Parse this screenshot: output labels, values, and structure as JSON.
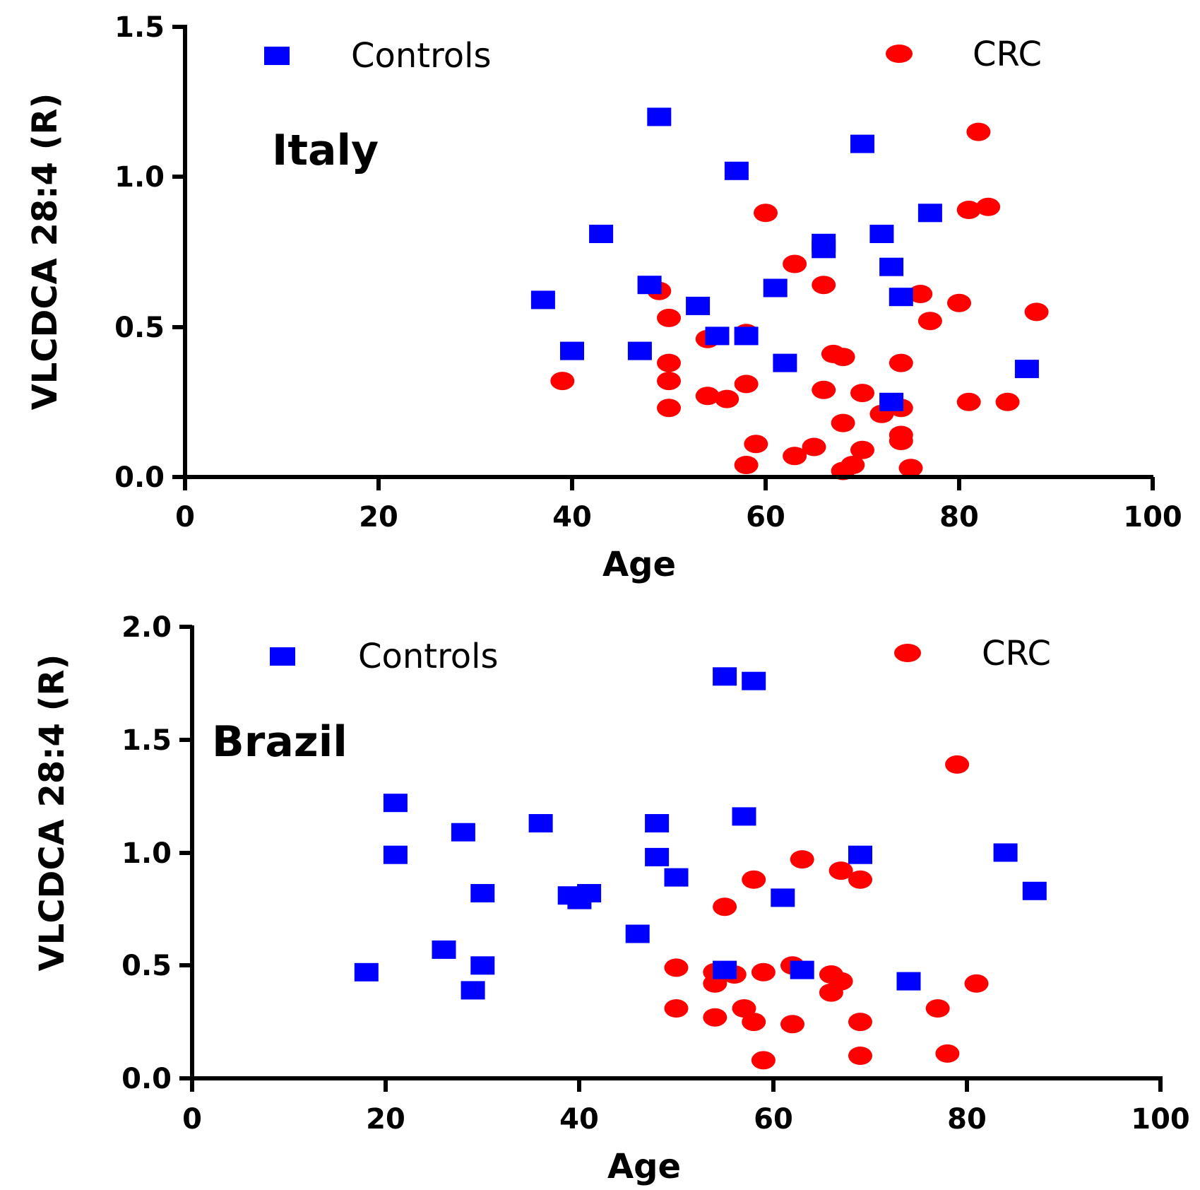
{
  "colors": {
    "controls": "#0000ff",
    "crc": "#ff0000",
    "axis": "#000000"
  },
  "chart_data": [
    {
      "type": "scatter",
      "title": "Italy",
      "xlabel": "Age",
      "ylabel": "VLCDCA 28:4 (R)",
      "xlim": [
        0,
        100
      ],
      "ylim": [
        0,
        1.5
      ],
      "xticks": [
        "0",
        "20",
        "40",
        "60",
        "80",
        "100"
      ],
      "yticks": [
        "0.0",
        "0.5",
        "1.0",
        "1.5"
      ],
      "legend": [
        "Controls",
        "CRC"
      ],
      "series": [
        {
          "name": "Controls",
          "marker": "square",
          "points": [
            [
              37,
              0.59
            ],
            [
              40,
              0.42
            ],
            [
              43,
              0.81
            ],
            [
              47,
              0.42
            ],
            [
              48,
              0.64
            ],
            [
              49,
              1.2
            ],
            [
              53,
              0.57
            ],
            [
              55,
              0.47
            ],
            [
              57,
              1.02
            ],
            [
              58,
              0.47
            ],
            [
              61,
              0.63
            ],
            [
              62,
              0.38
            ],
            [
              66,
              0.78
            ],
            [
              66,
              0.76
            ],
            [
              70,
              1.11
            ],
            [
              72,
              0.81
            ],
            [
              73,
              0.7
            ],
            [
              74,
              0.6
            ],
            [
              73,
              0.25
            ],
            [
              77,
              0.88
            ],
            [
              87,
              0.36
            ]
          ]
        },
        {
          "name": "CRC",
          "marker": "circle",
          "points": [
            [
              39,
              0.32
            ],
            [
              49,
              0.62
            ],
            [
              50,
              0.53
            ],
            [
              50,
              0.38
            ],
            [
              50,
              0.32
            ],
            [
              50,
              0.23
            ],
            [
              54,
              0.46
            ],
            [
              54,
              0.27
            ],
            [
              56,
              0.26
            ],
            [
              58,
              0.48
            ],
            [
              58,
              0.31
            ],
            [
              58,
              0.04
            ],
            [
              59,
              0.11
            ],
            [
              60,
              0.88
            ],
            [
              63,
              0.71
            ],
            [
              63,
              0.07
            ],
            [
              65,
              0.1
            ],
            [
              66,
              0.64
            ],
            [
              66,
              0.29
            ],
            [
              67,
              0.41
            ],
            [
              68,
              0.4
            ],
            [
              68,
              0.18
            ],
            [
              68,
              0.02
            ],
            [
              69,
              0.04
            ],
            [
              70,
              0.28
            ],
            [
              70,
              0.09
            ],
            [
              72,
              0.21
            ],
            [
              74,
              0.23
            ],
            [
              74,
              0.38
            ],
            [
              74,
              0.14
            ],
            [
              74,
              0.12
            ],
            [
              75,
              0.03
            ],
            [
              76,
              0.61
            ],
            [
              77,
              0.52
            ],
            [
              80,
              0.58
            ],
            [
              81,
              0.89
            ],
            [
              81,
              0.25
            ],
            [
              82,
              1.15
            ],
            [
              83,
              0.9
            ],
            [
              85,
              0.25
            ],
            [
              88,
              0.55
            ]
          ]
        }
      ]
    },
    {
      "type": "scatter",
      "title": "Brazil",
      "xlabel": "Age",
      "ylabel": "VLCDCA 28:4 (R)",
      "xlim": [
        0,
        100
      ],
      "ylim": [
        0,
        2.0
      ],
      "xticks": [
        "0",
        "20",
        "40",
        "60",
        "80",
        "100"
      ],
      "yticks": [
        "0.0",
        "0.5",
        "1.0",
        "1.5",
        "2.0"
      ],
      "legend": [
        "Controls",
        "CRC"
      ],
      "series": [
        {
          "name": "Controls",
          "marker": "square",
          "points": [
            [
              18,
              0.47
            ],
            [
              21,
              1.22
            ],
            [
              21,
              0.99
            ],
            [
              26,
              0.57
            ],
            [
              28,
              1.09
            ],
            [
              29,
              0.39
            ],
            [
              30,
              0.82
            ],
            [
              30,
              0.5
            ],
            [
              36,
              1.13
            ],
            [
              39,
              0.81
            ],
            [
              40,
              0.79
            ],
            [
              41,
              0.82
            ],
            [
              46,
              0.64
            ],
            [
              48,
              1.13
            ],
            [
              48,
              0.98
            ],
            [
              50,
              0.89
            ],
            [
              55,
              1.78
            ],
            [
              55,
              0.48
            ],
            [
              57,
              1.16
            ],
            [
              58,
              1.76
            ],
            [
              61,
              0.8
            ],
            [
              63,
              0.48
            ],
            [
              69,
              0.99
            ],
            [
              74,
              0.43
            ],
            [
              84,
              1.0
            ],
            [
              87,
              0.83
            ]
          ]
        },
        {
          "name": "CRC",
          "marker": "circle",
          "points": [
            [
              50,
              0.49
            ],
            [
              50,
              0.31
            ],
            [
              54,
              0.47
            ],
            [
              54,
              0.42
            ],
            [
              54,
              0.27
            ],
            [
              55,
              0.76
            ],
            [
              56,
              0.46
            ],
            [
              57,
              0.31
            ],
            [
              58,
              0.88
            ],
            [
              58,
              0.25
            ],
            [
              59,
              0.47
            ],
            [
              59,
              0.08
            ],
            [
              62,
              0.5
            ],
            [
              62,
              0.24
            ],
            [
              63,
              0.97
            ],
            [
              66,
              0.46
            ],
            [
              66,
              0.38
            ],
            [
              67,
              0.92
            ],
            [
              67,
              0.43
            ],
            [
              69,
              0.88
            ],
            [
              69,
              0.25
            ],
            [
              69,
              0.1
            ],
            [
              77,
              0.31
            ],
            [
              78,
              0.11
            ],
            [
              79,
              1.39
            ],
            [
              81,
              0.42
            ]
          ]
        }
      ]
    }
  ]
}
